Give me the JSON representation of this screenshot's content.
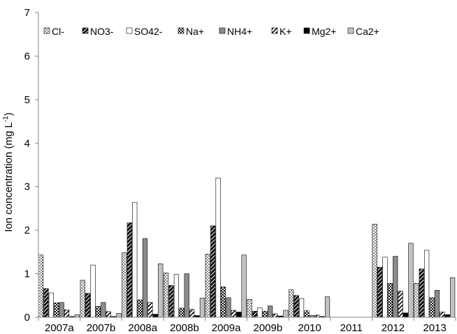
{
  "chart_data": {
    "type": "bar",
    "title": "",
    "ylabel": {
      "prefix": "Ion concentration (mg L",
      "superscript": "-1",
      "suffix": ")"
    },
    "xlabel": "",
    "ylim": [
      0,
      7
    ],
    "yticks": [
      "0",
      "1",
      "2",
      "3",
      "4",
      "5",
      "6",
      "7"
    ],
    "grid": false,
    "legend_position": "top-left",
    "categories": [
      "2007a",
      "2007b",
      "2008a",
      "2008b",
      "2009a",
      "2009b",
      "2010",
      "2011",
      "2012",
      "2013"
    ],
    "series": [
      {
        "name": "Cl-",
        "pattern": "dots-white",
        "values": [
          1.43,
          0.85,
          1.48,
          1.02,
          1.45,
          0.41,
          0.63,
          0,
          2.14,
          0.78
        ]
      },
      {
        "name": "NO3-",
        "pattern": "diag-black",
        "values": [
          0.66,
          0.55,
          2.17,
          0.73,
          2.1,
          0.14,
          0.5,
          0,
          1.15,
          1.11
        ]
      },
      {
        "name": "SO42-",
        "pattern": "white",
        "values": [
          0.56,
          1.2,
          2.64,
          0.99,
          3.2,
          0.22,
          0.43,
          0,
          1.38,
          1.54
        ]
      },
      {
        "name": "Na+",
        "pattern": "checker",
        "values": [
          0.33,
          0.25,
          0.4,
          0.21,
          0.7,
          0.14,
          0.15,
          0,
          0.78,
          0.45
        ]
      },
      {
        "name": "NH4+",
        "pattern": "gray",
        "values": [
          0.34,
          0.34,
          1.81,
          1.0,
          0.45,
          0.26,
          0.04,
          0,
          1.4,
          0.62
        ]
      },
      {
        "name": "K+",
        "pattern": "hatch",
        "values": [
          0.17,
          0.13,
          0.34,
          0.18,
          0.16,
          0.08,
          0.05,
          0,
          0.6,
          0.12
        ]
      },
      {
        "name": "Mg2+",
        "pattern": "black",
        "values": [
          0.02,
          0.02,
          0.07,
          0.04,
          0.12,
          0.03,
          0.02,
          0,
          0.1,
          0.06
        ]
      },
      {
        "name": "Ca2+",
        "pattern": "light-dots",
        "values": [
          0.06,
          0.09,
          1.23,
          0.44,
          1.43,
          0.16,
          0.47,
          0,
          1.7,
          0.91
        ]
      }
    ]
  }
}
